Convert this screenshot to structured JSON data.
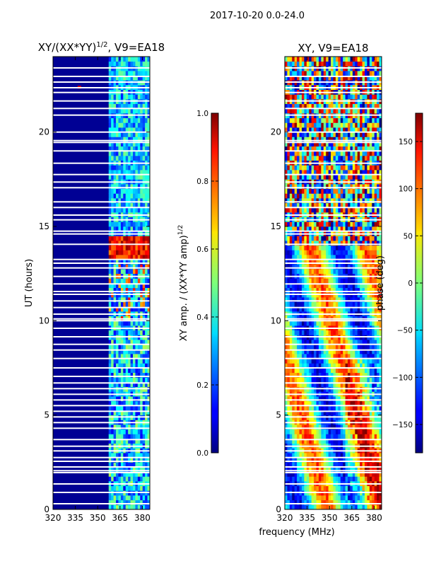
{
  "suptitle": "2017-10-20 0.0-24.0",
  "chart_data": [
    {
      "type": "heatmap",
      "title": "XY/(XX*YY)^{1/2}, V9=EA18",
      "title_main": "XY/(XX*YY)",
      "title_sup": "1/2",
      "title_tail": ", V9=EA18",
      "xlabel": "",
      "ylabel": "UT (hours)",
      "xlim": [
        320,
        385
      ],
      "ylim": [
        0,
        24
      ],
      "xticks": [
        320,
        335,
        350,
        365,
        380
      ],
      "yticks": [
        0,
        5,
        10,
        15,
        20
      ],
      "colorbar": {
        "label": "XY amp. / (XX*YY amp)^{1/2}",
        "label_main": "XY amp. / (XX*YY amp)",
        "label_sup": "1/2",
        "range": [
          0.0,
          1.0
        ],
        "ticks": [
          0.0,
          0.2,
          0.4,
          0.6,
          0.8,
          1.0
        ],
        "tick_labels": [
          "0.0",
          "0.2",
          "0.4",
          "0.6",
          "0.8",
          "1.0"
        ]
      }
    },
    {
      "type": "heatmap",
      "title": "XY, V9=EA18",
      "xlabel": "frequency (MHz)",
      "ylabel": "",
      "xlim": [
        320,
        385
      ],
      "ylim": [
        0,
        24
      ],
      "xticks": [
        320,
        335,
        350,
        365,
        380
      ],
      "yticks": [
        0,
        5,
        10,
        15,
        20
      ],
      "colorbar": {
        "label": "phase (deg)",
        "range": [
          -180,
          180
        ],
        "ticks": [
          -150,
          -100,
          -50,
          0,
          50,
          100,
          150
        ],
        "tick_labels": [
          "−150",
          "−100",
          "−50",
          "0",
          "50",
          "100",
          "150"
        ]
      }
    }
  ],
  "flagged_hours": [
    0.3,
    0.9,
    1.35,
    1.95,
    2.05,
    2.25,
    2.55,
    2.75,
    3.1,
    3.35,
    3.7,
    4.3,
    4.6,
    4.9,
    5.2,
    5.5,
    5.8,
    6.1,
    6.4,
    6.7,
    7.05,
    7.5,
    8.0,
    8.45,
    8.75,
    9.15,
    9.6,
    10.0,
    10.1,
    10.35,
    10.7,
    11.05,
    11.4,
    11.55,
    11.95,
    12.35,
    12.8,
    13.05,
    13.25,
    14.05,
    14.6,
    14.75,
    15.35,
    15.6,
    16.0,
    16.3,
    17.05,
    17.35,
    17.75,
    18.35,
    19.0,
    19.45,
    19.55,
    20.0,
    20.9,
    21.25,
    21.65,
    22.1,
    22.35,
    22.65,
    22.95,
    23.4
  ]
}
